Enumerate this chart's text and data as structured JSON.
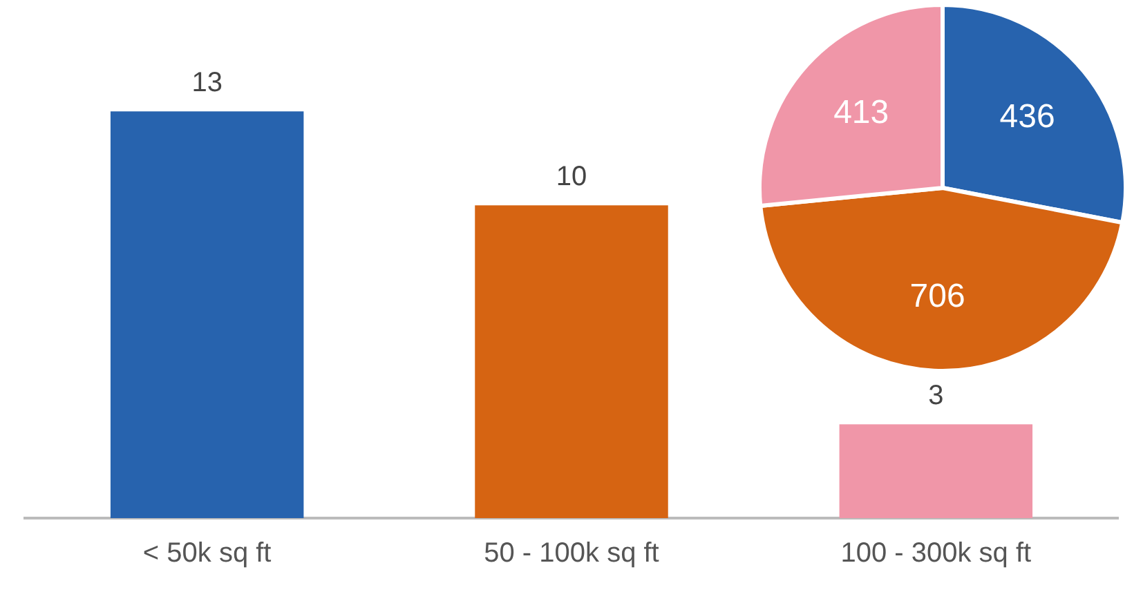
{
  "chart_data": [
    {
      "type": "bar",
      "categories": [
        "< 50k sq ft",
        "50 - 100k sq ft",
        "100 - 300k sq ft"
      ],
      "values": [
        13,
        10,
        3
      ],
      "colors": [
        "#2763ae",
        "#d66412",
        "#f096a8"
      ],
      "data_labels": true,
      "grid": false,
      "legend": false
    },
    {
      "type": "pie",
      "categories": [
        null,
        null,
        null
      ],
      "values": [
        436,
        706,
        413
      ],
      "colors": [
        "#2763ae",
        "#d66412",
        "#f096a8"
      ],
      "data_labels": true,
      "legend": false
    }
  ]
}
